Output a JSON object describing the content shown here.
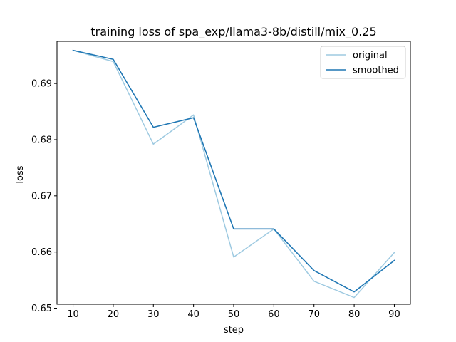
{
  "chart_data": {
    "type": "line",
    "title": "training loss of spa_exp/llama3-8b/distill/mix_0.25",
    "xlabel": "step",
    "ylabel": "loss",
    "x": [
      10,
      20,
      30,
      40,
      50,
      60,
      70,
      80,
      90
    ],
    "xlim": [
      6,
      94
    ],
    "ylim": [
      0.6507,
      0.6975
    ],
    "xticks": [
      10,
      20,
      30,
      40,
      50,
      60,
      70,
      80,
      90
    ],
    "yticks": [
      0.65,
      0.66,
      0.67,
      0.68,
      0.69
    ],
    "ytick_labels": [
      "0.65",
      "0.66",
      "0.67",
      "0.68",
      "0.69"
    ],
    "grid": false,
    "legend_position": "top-right",
    "series": [
      {
        "name": "original",
        "color": "#9ecae1",
        "values": [
          0.6959,
          0.6939,
          0.6792,
          0.6844,
          0.6591,
          0.6641,
          0.6548,
          0.6519,
          0.6599
        ]
      },
      {
        "name": "smoothed",
        "color": "#1f77b4",
        "values": [
          0.6959,
          0.6943,
          0.6822,
          0.6839,
          0.6641,
          0.6641,
          0.6567,
          0.6529,
          0.6585
        ]
      }
    ]
  }
}
